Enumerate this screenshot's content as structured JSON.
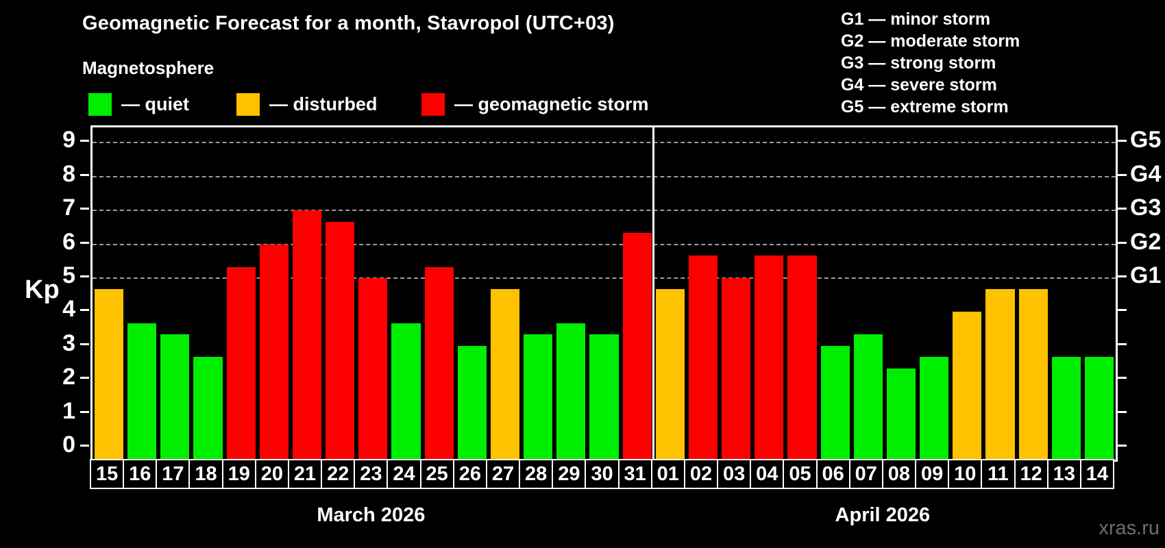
{
  "header": {
    "title": "Geomagnetic Forecast for a month, Stavropol (UTC+03)",
    "subtitle": "Magnetosphere"
  },
  "legend": {
    "items": [
      {
        "label": "— quiet",
        "color": "#00ee00",
        "x": 129
      },
      {
        "label": "— disturbed",
        "color": "#ffc200",
        "x": 345
      },
      {
        "label": "— geomagnetic storm",
        "color": "#ff0000",
        "x": 615
      }
    ]
  },
  "g_legend": {
    "items": [
      "G1 — minor storm",
      "G2 — moderate storm",
      "G3 — strong storm",
      "G4 — severe storm",
      "G5 — extreme storm"
    ]
  },
  "axis": {
    "y_label": "Kp",
    "y_ticks": [
      "0",
      "1",
      "2",
      "3",
      "4",
      "5",
      "6",
      "7",
      "8",
      "9"
    ],
    "right_labels": [
      {
        "value": 5,
        "label": "G1"
      },
      {
        "value": 6,
        "label": "G2"
      },
      {
        "value": 7,
        "label": "G3"
      },
      {
        "value": 8,
        "label": "G4"
      },
      {
        "value": 9,
        "label": "G5"
      }
    ]
  },
  "chart_data": {
    "type": "bar",
    "title": "Geomagnetic Forecast for a month, Stavropol (UTC+03)",
    "xlabel": "",
    "ylabel": "Kp",
    "ylim": [
      0,
      9
    ],
    "grid_levels": [
      5,
      6,
      7,
      8,
      9
    ],
    "legend_position": "top",
    "status_colors": {
      "quiet": "#00ee00",
      "disturbed": "#ffc200",
      "storm": "#ff0000"
    },
    "categories": [
      "15",
      "16",
      "17",
      "18",
      "19",
      "20",
      "21",
      "22",
      "23",
      "24",
      "25",
      "26",
      "27",
      "28",
      "29",
      "30",
      "31",
      "01",
      "02",
      "03",
      "04",
      "05",
      "06",
      "07",
      "08",
      "09",
      "10",
      "11",
      "12",
      "13",
      "14"
    ],
    "values": [
      4.67,
      3.67,
      3.33,
      2.67,
      5.33,
      6.0,
      7.0,
      6.67,
      5.0,
      3.67,
      5.33,
      3.0,
      4.67,
      3.33,
      3.67,
      3.33,
      6.33,
      4.67,
      5.67,
      5.0,
      5.67,
      5.67,
      3.0,
      3.33,
      2.33,
      2.67,
      4.0,
      4.67,
      4.67,
      2.67,
      2.67
    ],
    "statuses": [
      "disturbed",
      "quiet",
      "quiet",
      "quiet",
      "storm",
      "storm",
      "storm",
      "storm",
      "storm",
      "quiet",
      "storm",
      "quiet",
      "disturbed",
      "quiet",
      "quiet",
      "quiet",
      "storm",
      "disturbed",
      "storm",
      "storm",
      "storm",
      "storm",
      "quiet",
      "quiet",
      "quiet",
      "quiet",
      "disturbed",
      "disturbed",
      "disturbed",
      "quiet",
      "quiet"
    ],
    "months": [
      {
        "label": "March 2026",
        "days": 17
      },
      {
        "label": "April 2026",
        "days": 14
      }
    ]
  },
  "watermark": "xras.ru"
}
